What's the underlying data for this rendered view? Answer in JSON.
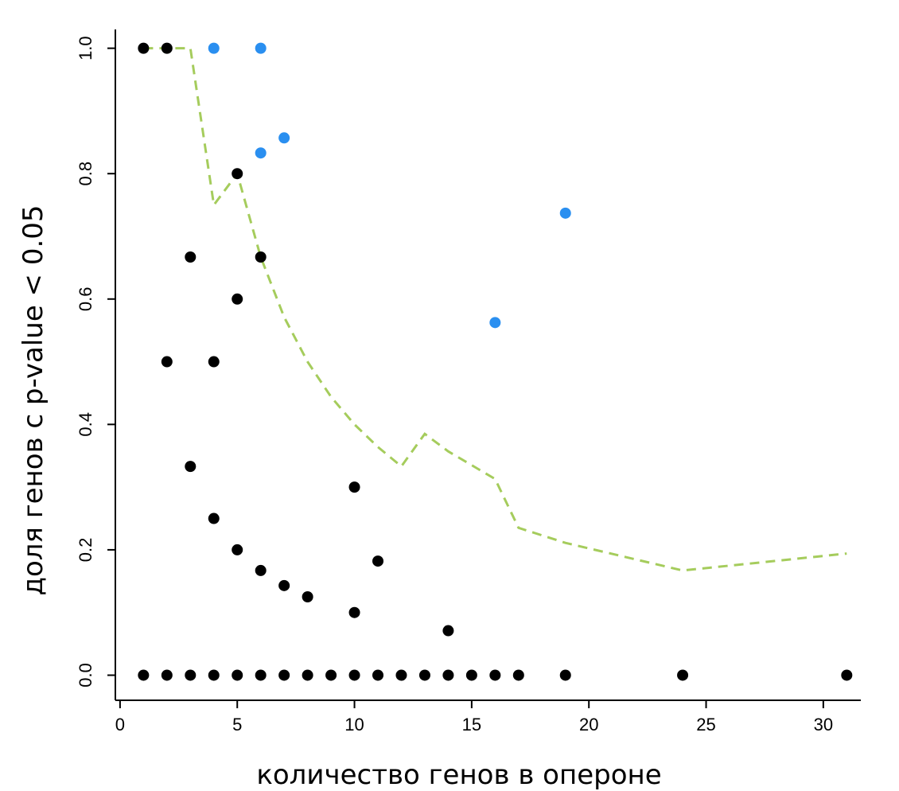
{
  "chart_data": {
    "type": "scatter",
    "title": "",
    "xlabel": "количество генов в опероне",
    "ylabel": "доля генов с p-value < 0.05",
    "xlim": [
      -0.2,
      31.6
    ],
    "ylim": [
      -0.04,
      1.03
    ],
    "x_ticks": [
      "0",
      "5",
      "10",
      "15",
      "20",
      "25",
      "30"
    ],
    "y_ticks": [
      "0.0",
      "0.2",
      "0.4",
      "0.6",
      "0.8",
      "1.0"
    ],
    "grid": false,
    "colors": {
      "black_points": "#000000",
      "blue_points": "#2a8ff0",
      "trend_line": "#a5cc5c"
    },
    "series": [
      {
        "points": [
          [
            1,
            1.0
          ],
          [
            2,
            1.0
          ],
          [
            1,
            0.0
          ],
          [
            2,
            0.5
          ],
          [
            2,
            0.0
          ],
          [
            3,
            0.667
          ],
          [
            3,
            0.333
          ],
          [
            3,
            0.0
          ],
          [
            4,
            0.5
          ],
          [
            4,
            0.25
          ],
          [
            4,
            0.0
          ],
          [
            5,
            0.8
          ],
          [
            5,
            0.6
          ],
          [
            5,
            0.2
          ],
          [
            5,
            0.0
          ],
          [
            6,
            0.667
          ],
          [
            6,
            0.167
          ],
          [
            6,
            0.0
          ],
          [
            7,
            0.143
          ],
          [
            7,
            0.0
          ],
          [
            8,
            0.125
          ],
          [
            8,
            0.0
          ],
          [
            9,
            0.0
          ],
          [
            10,
            0.3
          ],
          [
            10,
            0.1
          ],
          [
            10,
            0.0
          ],
          [
            11,
            0.182
          ],
          [
            11,
            0.0
          ],
          [
            12,
            0.0
          ],
          [
            13,
            0.0
          ],
          [
            14,
            0.071
          ],
          [
            14,
            0.0
          ],
          [
            15,
            0.0
          ],
          [
            16,
            0.0
          ],
          [
            17,
            0.0
          ],
          [
            19,
            0.0
          ],
          [
            24,
            0.0
          ],
          [
            31,
            0.0
          ]
        ]
      },
      {
        "points": [
          [
            4,
            1.0
          ],
          [
            6,
            1.0
          ],
          [
            6,
            0.833
          ],
          [
            7,
            0.857
          ],
          [
            16,
            0.5625
          ],
          [
            19,
            0.737
          ]
        ]
      },
      {
        "points": [
          [
            1,
            1.0
          ],
          [
            3,
            1.0
          ],
          [
            4,
            0.75
          ],
          [
            5,
            0.8
          ],
          [
            6,
            0.667
          ],
          [
            7,
            0.571
          ],
          [
            8,
            0.5
          ],
          [
            9,
            0.444
          ],
          [
            10,
            0.4
          ],
          [
            11,
            0.364
          ],
          [
            12,
            0.333
          ],
          [
            13,
            0.385
          ],
          [
            14,
            0.357
          ],
          [
            16,
            0.313
          ],
          [
            17,
            0.235
          ],
          [
            19,
            0.211
          ],
          [
            24,
            0.167
          ],
          [
            31,
            0.194
          ]
        ]
      }
    ]
  }
}
